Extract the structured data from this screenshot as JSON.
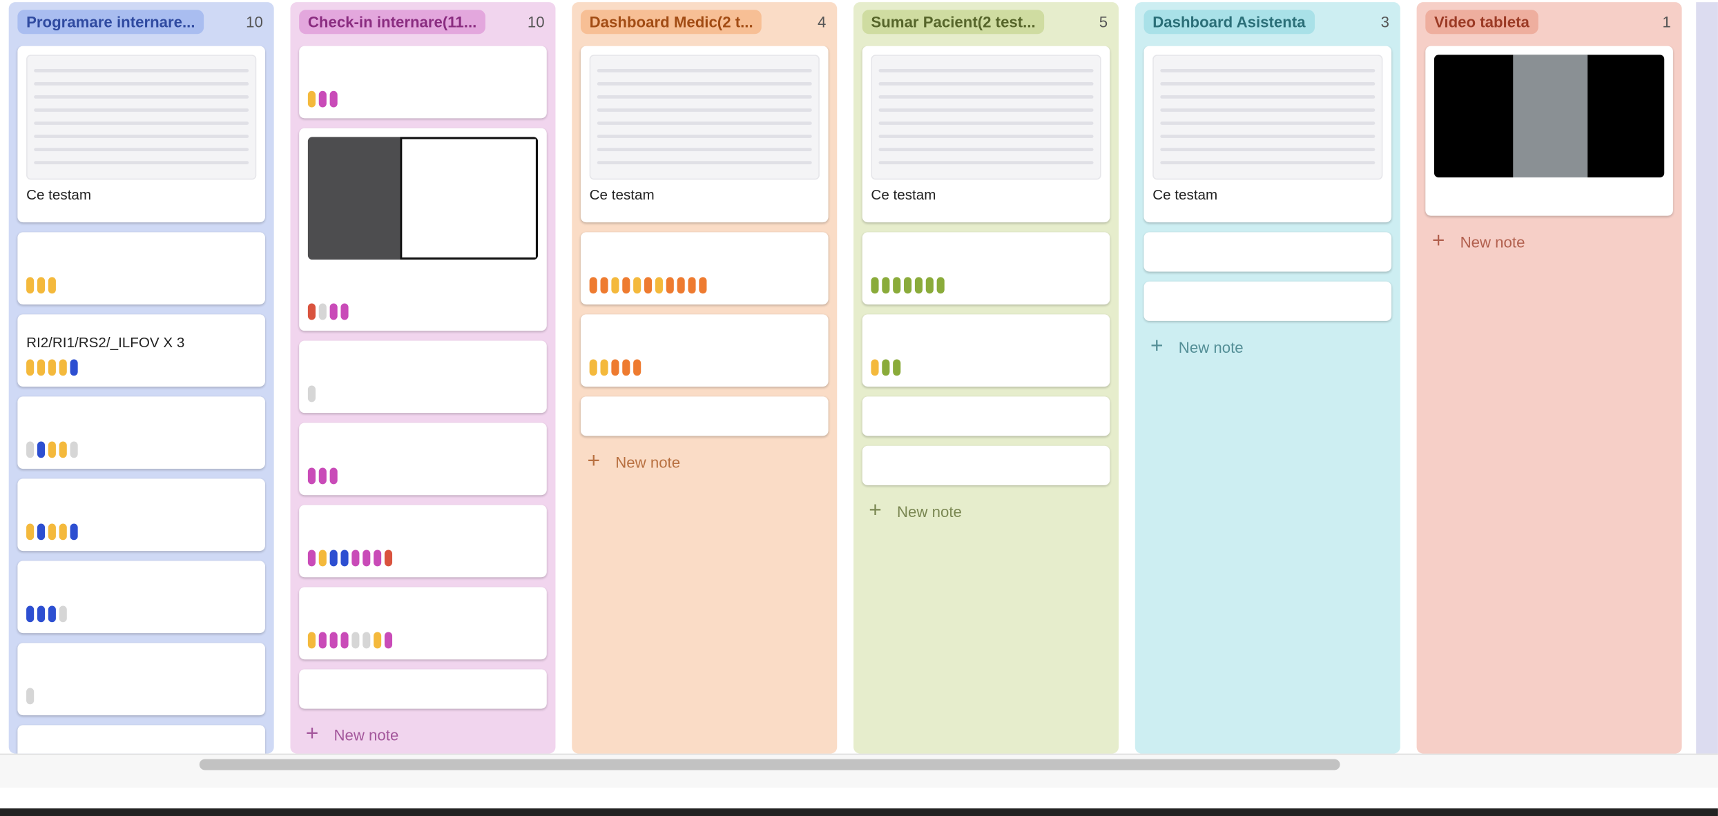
{
  "columns": [
    {
      "title": "Programare internare...",
      "count": 10,
      "bg": "#cfd9f5",
      "pill": "#a9bdf0",
      "ink": "#2f4aa0",
      "cards": [
        {
          "cover": "screenshot",
          "title": "Ce testam"
        },
        {
          "tags": [
            "#f4b93c",
            "#f4b93c",
            "#f4b93c"
          ]
        },
        {
          "title": "RI2/RI1/RS2/_ILFOV X 3",
          "tags": [
            "#f4b93c",
            "#f4b93c",
            "#f4b93c",
            "#f4b93c",
            "#2d4fd1"
          ]
        },
        {
          "tags": [
            "#d6d6d6",
            "#2d4fd1",
            "#f4b93c",
            "#f4b93c",
            "#d6d6d6"
          ]
        },
        {
          "tags": [
            "#f4b93c",
            "#2d4fd1",
            "#f4b93c",
            "#f4b93c",
            "#2d4fd1"
          ]
        },
        {
          "tags": [
            "#2d4fd1",
            "#2d4fd1",
            "#2d4fd1",
            "#d6d6d6"
          ]
        },
        {
          "tags": [
            "#d6d6d6"
          ]
        },
        {
          "tags": [
            "#d6d6d6"
          ]
        }
      ]
    },
    {
      "title": "Check-in internare(11...",
      "count": 10,
      "bg": "#f1d5ee",
      "pill": "#e3a7dd",
      "ink": "#8a2c80",
      "new": "New note",
      "cards": [
        {
          "tags": [
            "#f4b93c",
            "#c94bb8",
            "#c94bb8"
          ]
        },
        {
          "cover": "photo",
          "tags": [
            "#d9533e",
            "#d6d6d6",
            "#c94bb8",
            "#c94bb8"
          ]
        },
        {
          "tags": [
            "#d6d6d6"
          ]
        },
        {
          "tags": [
            "#c94bb8",
            "#c94bb8",
            "#c94bb8"
          ]
        },
        {
          "tags": [
            "#c94bb8",
            "#f4b93c",
            "#2d4fd1",
            "#2d4fd1",
            "#c94bb8",
            "#c94bb8",
            "#c94bb8",
            "#d9533e"
          ]
        },
        {
          "tags": [
            "#f4b93c",
            "#c94bb8",
            "#c94bb8",
            "#c94bb8",
            "#d6d6d6",
            "#d6d6d6",
            "#f4b93c",
            "#c94bb8"
          ]
        },
        {}
      ]
    },
    {
      "title": "Dashboard Medic(2 t...",
      "count": 4,
      "bg": "#fadcc6",
      "pill": "#f7bf95",
      "ink": "#a24c14",
      "new": "New note",
      "cards": [
        {
          "cover": "screenshot",
          "title": "Ce testam"
        },
        {
          "tags": [
            "#ee7b30",
            "#ee7b30",
            "#f4b93c",
            "#ee7b30",
            "#f4b93c",
            "#ee7b30",
            "#f4b93c",
            "#ee7b30",
            "#ee7b30",
            "#ee7b30",
            "#ee7b30"
          ]
        },
        {
          "tags": [
            "#f4b93c",
            "#f4b93c",
            "#ee7b30",
            "#ee7b30",
            "#ee7b30"
          ]
        },
        {}
      ]
    },
    {
      "title": "Sumar Pacient(2 test...",
      "count": 5,
      "bg": "#e6edcc",
      "pill": "#cfdca1",
      "ink": "#56652a",
      "new": "New note",
      "cards": [
        {
          "cover": "screenshot",
          "title": "Ce testam"
        },
        {
          "tags": [
            "#8aab3a",
            "#8aab3a",
            "#8aab3a",
            "#8aab3a",
            "#8aab3a",
            "#8aab3a",
            "#8aab3a"
          ]
        },
        {
          "tags": [
            "#f4b93c",
            "#8aab3a",
            "#8aab3a"
          ]
        },
        {},
        {}
      ]
    },
    {
      "title": "Dashboard Asistenta",
      "count": 3,
      "bg": "#cdeef2",
      "pill": "#a9e1e8",
      "ink": "#2b6f78",
      "new": "New note",
      "cards": [
        {
          "cover": "screenshot",
          "title": "Ce testam"
        },
        {},
        {}
      ]
    },
    {
      "title": "Video tableta",
      "count": 1,
      "bg": "#f6cfc7",
      "pill": "#eeae9e",
      "ink": "#9b3a25",
      "new": "New note",
      "cards": [
        {
          "cover": "video"
        }
      ]
    }
  ]
}
